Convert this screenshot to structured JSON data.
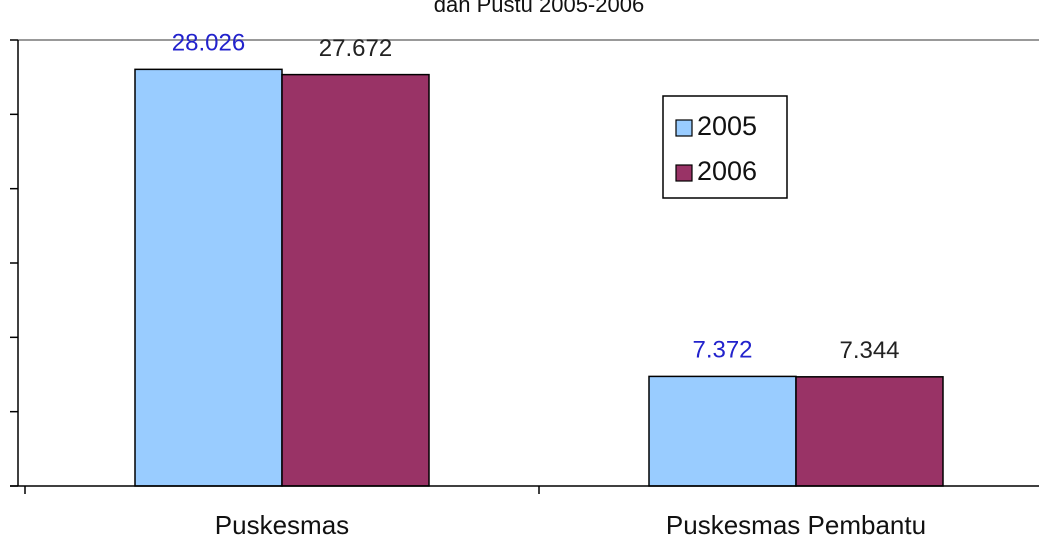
{
  "chart_data": {
    "type": "bar",
    "title": "dan Pustu 2005-2006",
    "categories": [
      "Puskesmas",
      "Puskesmas Pembantu"
    ],
    "series": [
      {
        "name": "2005",
        "color": "#99ccff",
        "label_color": "#2222cc",
        "values": [
          28.026,
          7.372
        ]
      },
      {
        "name": "2006",
        "color": "#993366",
        "label_color": "#222222",
        "values": [
          27.672,
          7.344
        ]
      }
    ],
    "ylim": [
      0,
      30
    ],
    "yticks": [
      0,
      5,
      10,
      15,
      20,
      25,
      30
    ],
    "grid": false,
    "legend": "upper right"
  }
}
